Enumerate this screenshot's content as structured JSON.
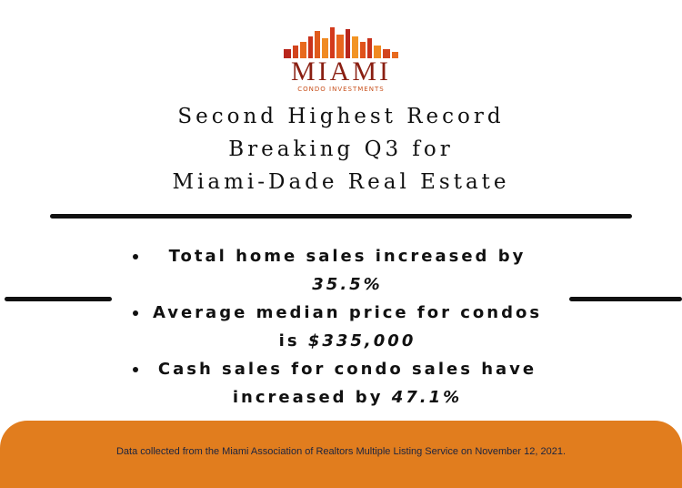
{
  "logo": {
    "name": "MIAMI",
    "tagline": "CONDO INVESTMENTS"
  },
  "title": [
    "Second Highest Record",
    "Breaking Q3 for",
    "Miami-Dade Real Estate"
  ],
  "bullets": [
    {
      "text": "Total home sales increased by",
      "value": "35.5%"
    },
    {
      "text": "Average median price for condos is",
      "value": "$335,000"
    },
    {
      "text": "Cash sales for condo sales have increased by",
      "value": "47.1%"
    }
  ],
  "footer": "Data collected from the Miami Association of Realtors Multiple Listing Service on November 12, 2021."
}
